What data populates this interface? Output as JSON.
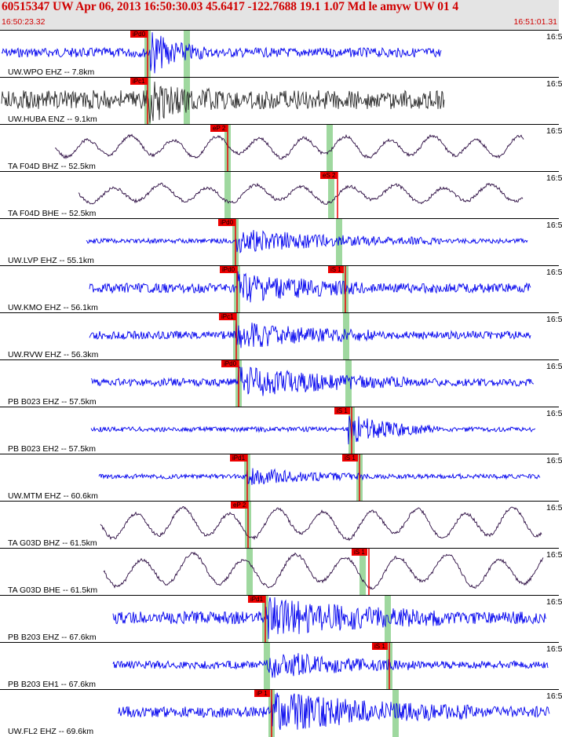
{
  "header": {
    "title": "60515347 UW Apr 06, 2013 16:50:30.03   45.6417 -122.7688 19.1 1.07 Md le amyw UW 01   4",
    "start_time": "16:50:23.32",
    "end_time": "16:51:01.31"
  },
  "colors": {
    "trace_blue": "#0000ee",
    "trace_dark": "#2a2a2a",
    "trace_purple": "#2a0a40",
    "pick_red": "#ee0000",
    "pick_green": "#9fd89f"
  },
  "panels": [
    {
      "label": "UW.WPO EHZ -- 7.8km",
      "time": "16:5",
      "picks": [
        "iPd0"
      ],
      "color": "trace_blue"
    },
    {
      "label": "UW.HUBA ENZ -- 9.1km",
      "time": "16:5",
      "picks": [
        "iPc1"
      ],
      "color": "trace_dark"
    },
    {
      "label": "TA F04D BHZ -- 52.5km",
      "time": "16:5",
      "picks": [
        "eP 2"
      ],
      "color": "trace_purple"
    },
    {
      "label": "TA F04D BHE -- 52.5km",
      "time": "16:5",
      "picks": [
        "eS 2"
      ],
      "color": "trace_purple"
    },
    {
      "label": "UW.LVP EHZ -- 55.1km",
      "time": "16:5",
      "picks": [
        "iPd0"
      ],
      "color": "trace_blue"
    },
    {
      "label": "UW.KMO EHZ -- 56.1km",
      "time": "16:5",
      "picks": [
        "iPd0",
        "iS 1"
      ],
      "color": "trace_blue"
    },
    {
      "label": "UW.RVW EHZ -- 56.3km",
      "time": "16:5",
      "picks": [
        "iPc1"
      ],
      "color": "trace_blue"
    },
    {
      "label": "PB B023 EHZ -- 57.5km",
      "time": "16:5",
      "picks": [
        "iPd0"
      ],
      "color": "trace_blue"
    },
    {
      "label": "PB B023 EH2 -- 57.5km",
      "time": "16:5",
      "picks": [
        "iS 1"
      ],
      "color": "trace_blue"
    },
    {
      "label": "UW.MTM EHZ -- 60.6km",
      "time": "16:5",
      "picks": [
        "iPd1",
        "iS 1"
      ],
      "color": "trace_blue"
    },
    {
      "label": "TA G03D BHZ -- 61.5km",
      "time": "16:5",
      "picks": [
        "eP 2"
      ],
      "color": "trace_purple"
    },
    {
      "label": "TA G03D BHE -- 61.5km",
      "time": "16:5",
      "picks": [
        "iS 1"
      ],
      "color": "trace_purple"
    },
    {
      "label": "PB B203 EHZ -- 67.6km",
      "time": "16:5",
      "picks": [
        "iPd1"
      ],
      "color": "trace_blue"
    },
    {
      "label": "PB B203 EH1 -- 67.6km",
      "time": "16:5",
      "picks": [
        "iS 1"
      ],
      "color": "trace_blue"
    },
    {
      "label": "UW.FL2 EHZ -- 69.6km",
      "time": "16:5",
      "picks": [
        "iP 1"
      ],
      "color": "trace_blue"
    }
  ]
}
